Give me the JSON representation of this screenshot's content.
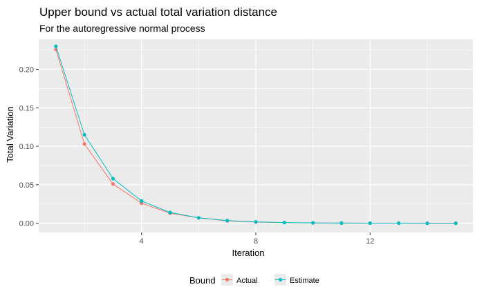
{
  "chart_data": {
    "type": "line",
    "title": "Upper bound vs actual total variation distance",
    "subtitle": "For the autoregressive normal process",
    "xlabel": "Iteration",
    "ylabel": "Total Variation",
    "xlim": [
      0.4,
      15.6
    ],
    "ylim": [
      -0.012,
      0.239
    ],
    "x_ticks": [
      4,
      8,
      12
    ],
    "x_tick_labels": [
      "4",
      "8",
      "12"
    ],
    "y_ticks": [
      0.0,
      0.05,
      0.1,
      0.15,
      0.2
    ],
    "y_tick_labels": [
      "0.00",
      "0.05",
      "0.10",
      "0.15",
      "0.20"
    ],
    "grid": true,
    "legend": {
      "title": "Bound",
      "position": "bottom"
    },
    "x": [
      1,
      2,
      3,
      4,
      5,
      6,
      7,
      8,
      9,
      10,
      11,
      12,
      13,
      14,
      15
    ],
    "series": [
      {
        "name": "Actual",
        "color": "#F8766D",
        "values": [
          0.226,
          0.103,
          0.051,
          0.026,
          0.013,
          0.007,
          0.003,
          0.0015,
          0.0008,
          0.0004,
          0.0002,
          0.0001,
          0.0001,
          0.0,
          0.0
        ]
      },
      {
        "name": "Estimate",
        "color": "#00BFC4",
        "values": [
          0.23,
          0.115,
          0.058,
          0.029,
          0.014,
          0.007,
          0.0035,
          0.0018,
          0.0009,
          0.0005,
          0.0002,
          0.0001,
          0.0001,
          0.0,
          0.0
        ]
      }
    ]
  }
}
